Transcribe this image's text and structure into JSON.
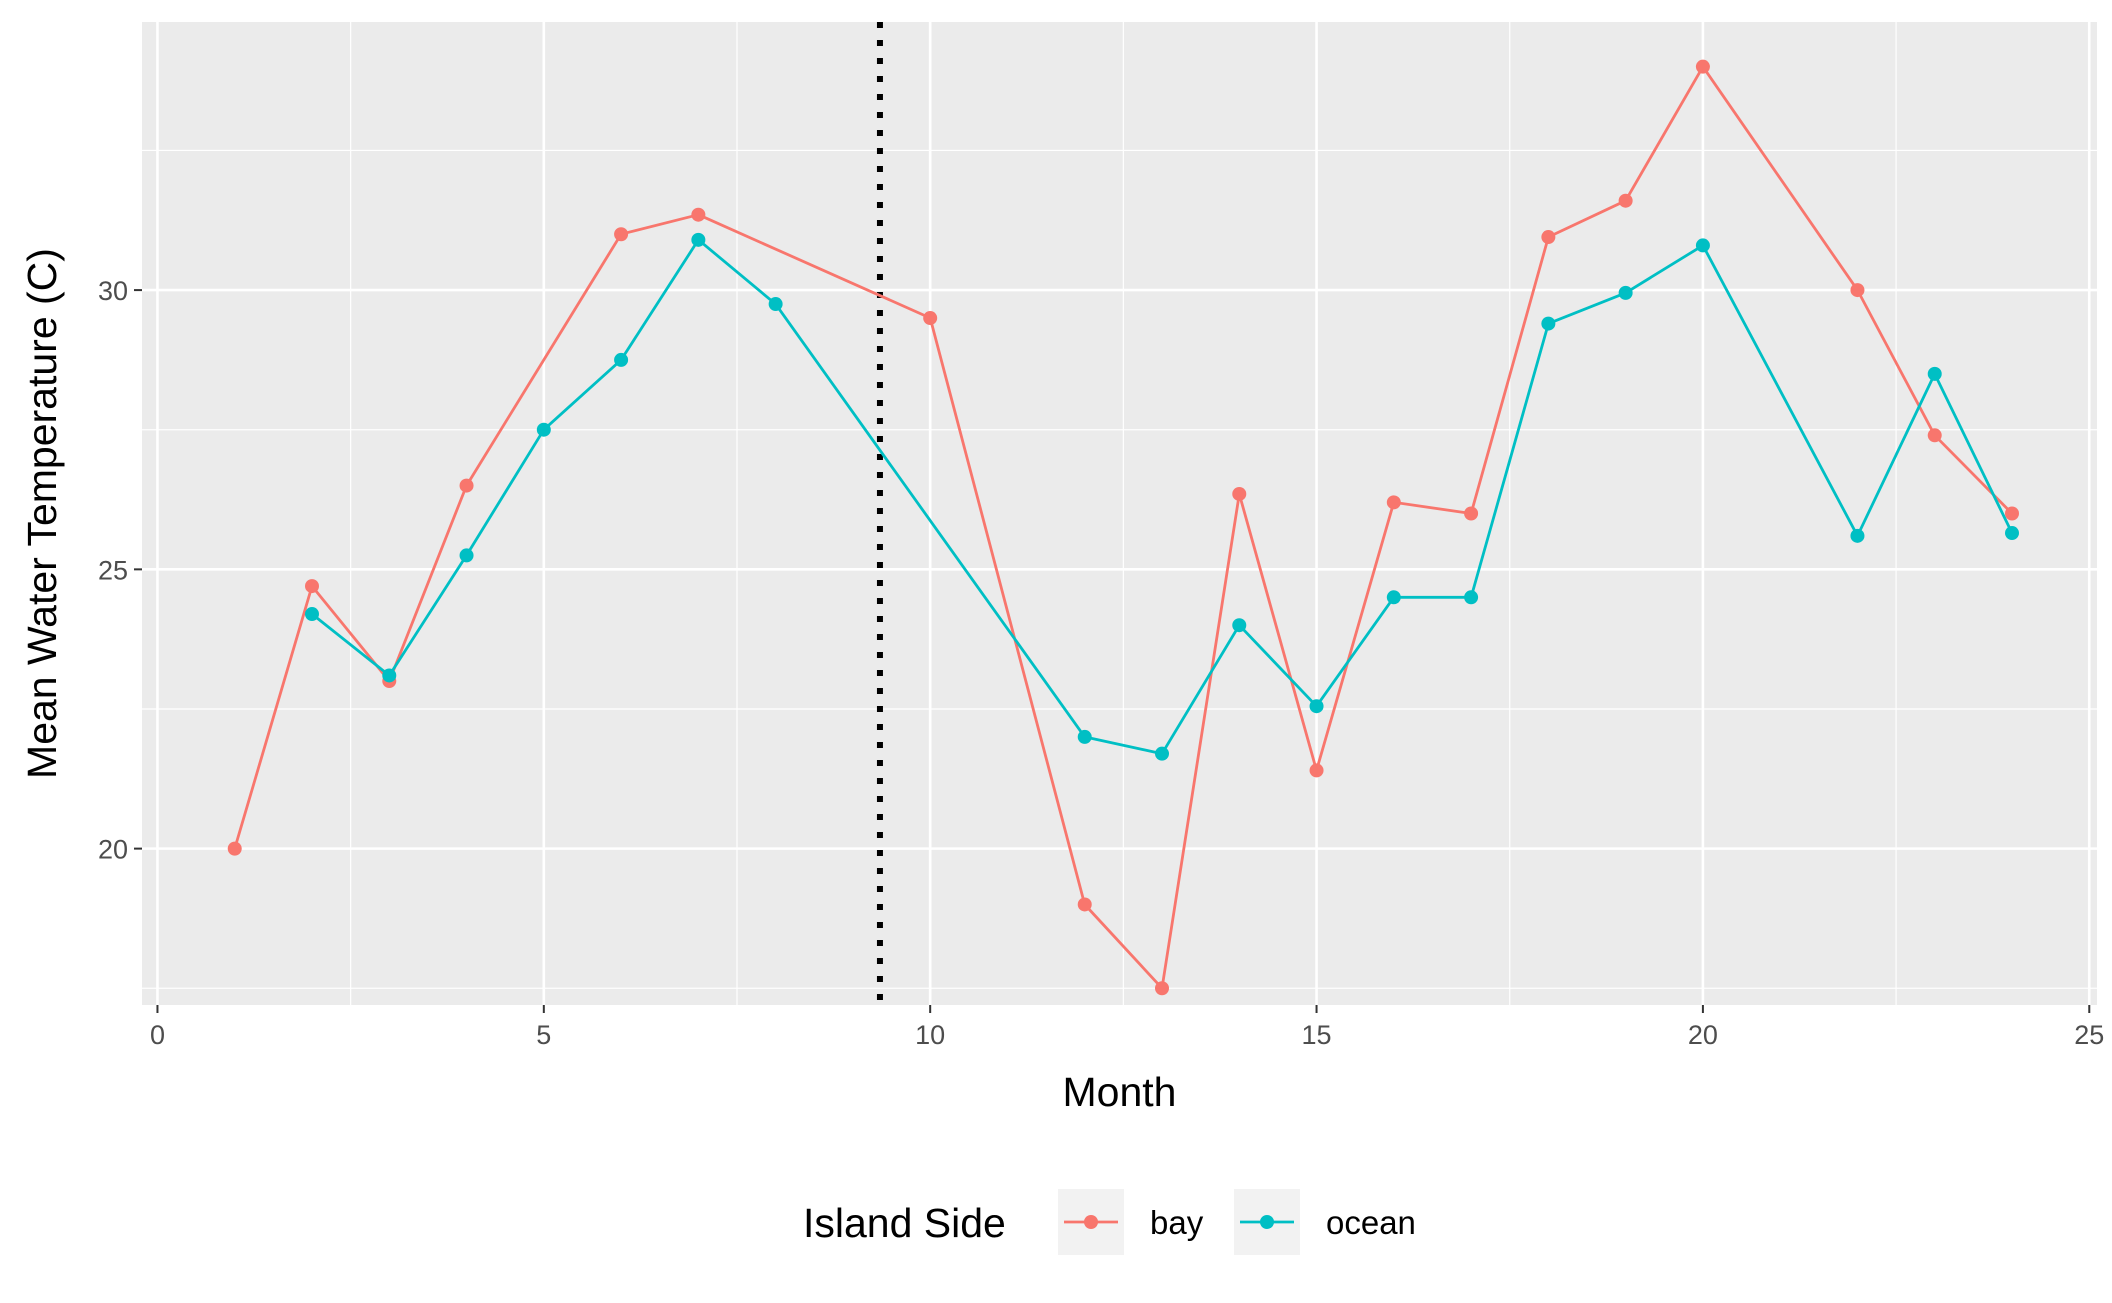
{
  "chart_data": {
    "type": "line",
    "title": "",
    "xlabel": "Month",
    "ylabel": "Mean Water Temperature (C)",
    "xlim": [
      -0.2,
      25.1
    ],
    "ylim": [
      17.2,
      34.8
    ],
    "x_ticks": [
      0,
      5,
      10,
      15,
      20,
      25
    ],
    "x_tick_labels": [
      "0",
      "5",
      "10",
      "15",
      "20",
      "25"
    ],
    "y_ticks": [
      20,
      25,
      30
    ],
    "y_tick_labels": [
      "20",
      "25",
      "30"
    ],
    "grid": true,
    "background": "#ebebeb",
    "vline": {
      "x": 9.35,
      "style": "dotted",
      "color": "#000000"
    },
    "legend": {
      "title": "Island Side",
      "position": "bottom"
    },
    "series": [
      {
        "name": "bay",
        "color": "#f8766d",
        "points": [
          [
            1,
            20.0
          ],
          [
            2,
            24.7
          ],
          [
            3,
            23.0
          ],
          [
            4,
            26.5
          ],
          [
            6,
            31.0
          ],
          [
            7,
            31.35
          ],
          [
            10,
            29.5
          ],
          [
            12,
            19.0
          ],
          [
            13,
            17.5
          ],
          [
            14,
            26.35
          ],
          [
            15,
            21.4
          ],
          [
            16,
            26.2
          ],
          [
            17,
            26.0
          ],
          [
            18,
            30.95
          ],
          [
            19,
            31.6
          ],
          [
            20,
            34.0
          ],
          [
            22,
            30.0
          ],
          [
            23,
            27.4
          ],
          [
            24,
            26.0
          ]
        ]
      },
      {
        "name": "ocean",
        "color": "#00bfc4",
        "points": [
          [
            2,
            24.2
          ],
          [
            3,
            23.1
          ],
          [
            4,
            25.25
          ],
          [
            5,
            27.5
          ],
          [
            6,
            28.75
          ],
          [
            7,
            30.9
          ],
          [
            8,
            29.75
          ],
          [
            12,
            22.0
          ],
          [
            13,
            21.7
          ],
          [
            14,
            24.0
          ],
          [
            15,
            22.55
          ],
          [
            16,
            24.5
          ],
          [
            17,
            24.5
          ],
          [
            18,
            29.4
          ],
          [
            19,
            29.95
          ],
          [
            20,
            30.8
          ],
          [
            22,
            25.6
          ],
          [
            23,
            28.5
          ],
          [
            24,
            25.65
          ]
        ]
      }
    ]
  }
}
